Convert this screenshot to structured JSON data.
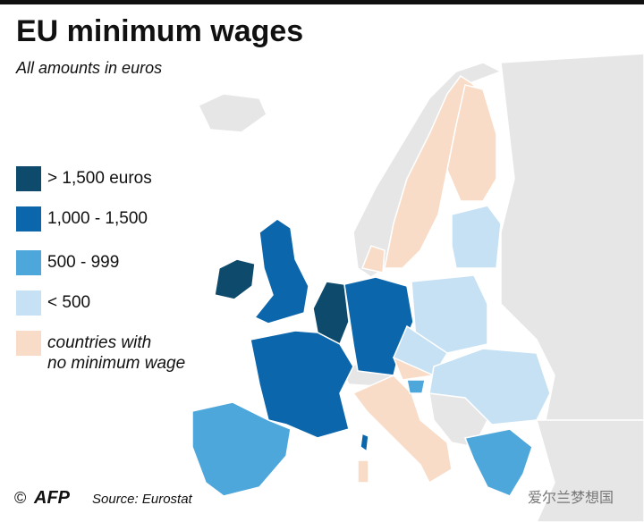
{
  "header": {
    "title": "EU minimum wages",
    "subtitle": "All amounts in euros"
  },
  "legend": [
    {
      "label": "> 1,500 euros",
      "color": "#0e4a6c"
    },
    {
      "label": "1,000 - 1,500",
      "color": "#0b66ac"
    },
    {
      "label": "500 - 999",
      "color": "#4ea7db"
    },
    {
      "label": "< 500",
      "color": "#c6e1f3"
    },
    {
      "label": [
        "countries with",
        "no minimum wage"
      ],
      "color": "#f9dcc7"
    }
  ],
  "footer": {
    "copyright": "©",
    "agency": "AFP",
    "source": "Source: Eurostat",
    "watermark": "爱尔兰梦想国"
  }
}
